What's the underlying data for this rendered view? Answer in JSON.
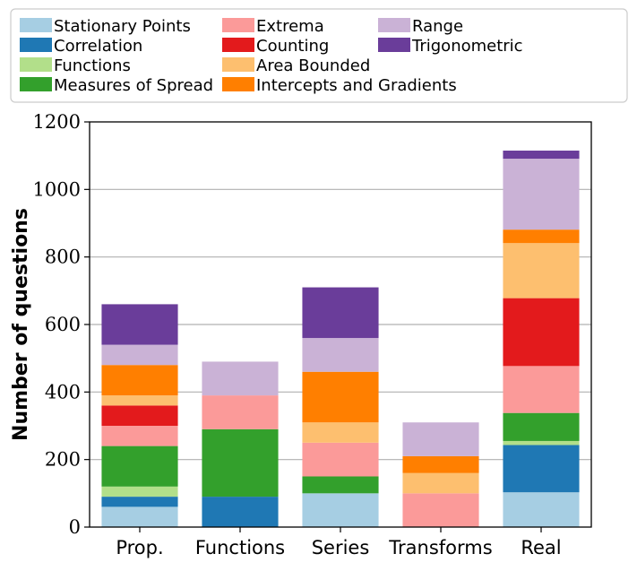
{
  "chart_data": {
    "type": "bar",
    "stacked": true,
    "categories": [
      "Prop.",
      "Functions",
      "Series",
      "Transforms",
      "Real"
    ],
    "ylabel": "Number of questions",
    "xlabel": "",
    "ylim": [
      0,
      1200
    ],
    "yticks": [
      "0",
      "200",
      "400",
      "600",
      "800",
      "1000",
      "1200"
    ],
    "grid": "horizontal",
    "legend_position": "top",
    "series": [
      {
        "name": "Stationary Points",
        "color": "#a6cee3",
        "values": [
          60,
          0,
          100,
          0,
          103
        ]
      },
      {
        "name": "Correlation",
        "color": "#1f78b4",
        "values": [
          30,
          90,
          0,
          0,
          140
        ]
      },
      {
        "name": "Functions",
        "color": "#b2df8a",
        "values": [
          30,
          0,
          0,
          0,
          12
        ]
      },
      {
        "name": "Measures of Spread",
        "color": "#33a02c",
        "values": [
          120,
          200,
          50,
          0,
          83
        ]
      },
      {
        "name": "Extrema",
        "color": "#fb9a99",
        "values": [
          60,
          100,
          100,
          100,
          139
        ]
      },
      {
        "name": "Counting",
        "color": "#e31a1c",
        "values": [
          60,
          0,
          0,
          0,
          201
        ]
      },
      {
        "name": "Area Bounded",
        "color": "#fdbf6f",
        "values": [
          30,
          0,
          60,
          60,
          163
        ]
      },
      {
        "name": "Intercepts and Gradients",
        "color": "#ff7f00",
        "values": [
          90,
          0,
          150,
          50,
          40
        ]
      },
      {
        "name": "Range",
        "color": "#cab2d6",
        "values": [
          60,
          100,
          100,
          100,
          210
        ]
      },
      {
        "name": "Trigonometric",
        "color": "#6a3d9a",
        "values": [
          120,
          0,
          150,
          0,
          24
        ]
      }
    ]
  }
}
